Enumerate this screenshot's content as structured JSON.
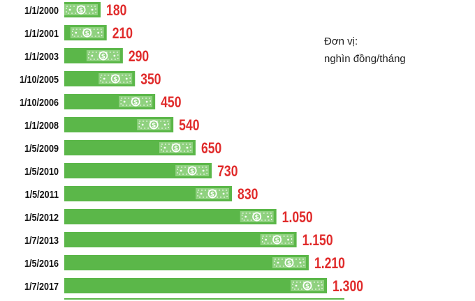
{
  "chart_data": {
    "type": "bar",
    "orientation": "horizontal",
    "categories": [
      "1/1/2000",
      "1/1/2001",
      "1/1/2003",
      "1/10/2005",
      "1/10/2006",
      "1/1/2008",
      "1/5/2009",
      "1/5/2010",
      "1/5/2011",
      "1/5/2012",
      "1/7/2013",
      "1/5/2016",
      "1/7/2017"
    ],
    "values": [
      180,
      210,
      290,
      350,
      450,
      540,
      650,
      730,
      830,
      1050,
      1150,
      1210,
      1300
    ],
    "value_labels": [
      "180",
      "210",
      "290",
      "350",
      "450",
      "540",
      "650",
      "730",
      "830",
      "1.050",
      "1.150",
      "1.210",
      "1.300"
    ],
    "title": "",
    "unit_label": "Đơn vị:",
    "unit_value": "nghìn đồng/tháng",
    "xlim": [
      0,
      1300
    ],
    "grid": false,
    "legend": "none",
    "colors": {
      "bar": "#5bb749",
      "bar_icon": "#8fd17f",
      "value_label": "#e02b2b",
      "category_label": "#111111",
      "baseline": "#5bb749"
    },
    "bar_icon": "dollar-bill-icon"
  }
}
